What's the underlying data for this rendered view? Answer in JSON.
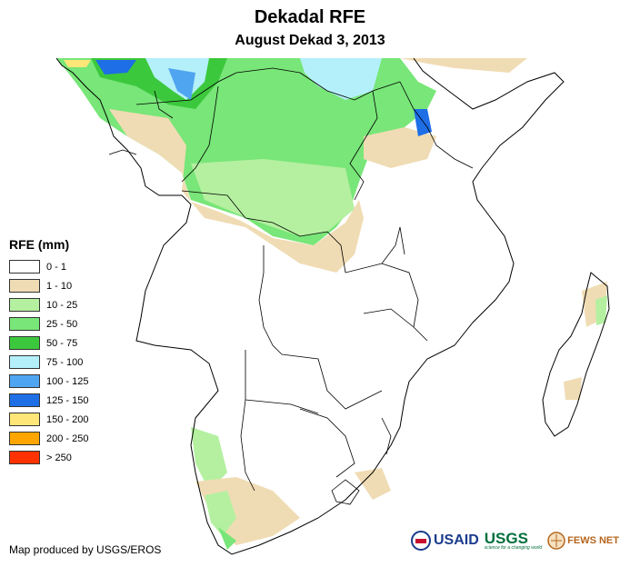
{
  "title": "Dekadal RFE",
  "subtitle": "August Dekad 3, 2013",
  "legend": {
    "title": "RFE (mm)",
    "items": [
      {
        "label": "0 - 1",
        "color": "#ffffff"
      },
      {
        "label": "1 - 10",
        "color": "#f0dcb4"
      },
      {
        "label": "10 - 25",
        "color": "#b4f0a0"
      },
      {
        "label": "25 - 50",
        "color": "#78e678"
      },
      {
        "label": "50 - 75",
        "color": "#3cc83c"
      },
      {
        "label": "75 - 100",
        "color": "#b4f0fa"
      },
      {
        "label": "100 - 125",
        "color": "#50a5f0"
      },
      {
        "label": "125 - 150",
        "color": "#1e6ee6"
      },
      {
        "label": "150 - 200",
        "color": "#ffe678"
      },
      {
        "label": "200 - 250",
        "color": "#ffa500"
      },
      {
        "label": "> 250",
        "color": "#ff3200"
      }
    ]
  },
  "credit": "Map produced by USGS/EROS",
  "logos": {
    "usaid": "USAID",
    "usgs": "USGS",
    "usgs_tagline": "science for a changing world",
    "fewsnet": "FEWS NET"
  }
}
